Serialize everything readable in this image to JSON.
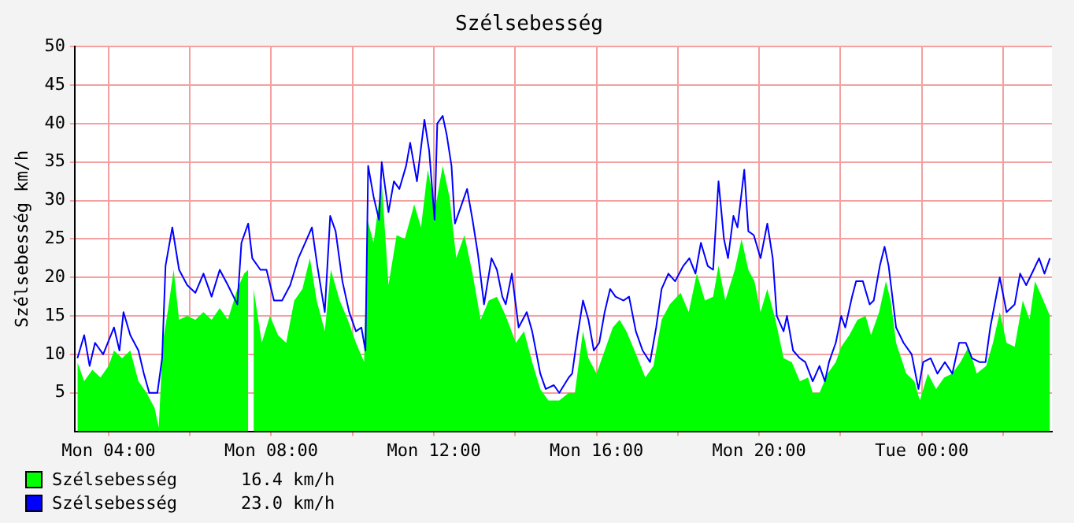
{
  "chart_data": {
    "type": "area",
    "title": "Szélsebesség",
    "ylabel": "Szélsebesség km/h",
    "xlim": [
      "--01-01T03:10",
      "--01-02T03:12"
    ],
    "xticks": [
      {
        "value": "--01-01T04:00",
        "label": "Mon 04:00"
      },
      {
        "value": "--01-01T06:00",
        "label": null
      },
      {
        "value": "--01-01T08:00",
        "label": "Mon 08:00"
      },
      {
        "value": "--01-01T10:00",
        "label": null
      },
      {
        "value": "--01-01T12:00",
        "label": "Mon 12:00"
      },
      {
        "value": "--01-01T14:00",
        "label": null
      },
      {
        "value": "--01-01T16:00",
        "label": "Mon 16:00"
      },
      {
        "value": "--01-01T18:00",
        "label": null
      },
      {
        "value": "--01-01T20:00",
        "label": "Mon 20:00"
      },
      {
        "value": "--01-01T22:00",
        "label": null
      },
      {
        "value": "--01-02T00:00",
        "label": "Tue 00:00"
      },
      {
        "value": "--01-02T02:00",
        "label": null
      }
    ],
    "ylim": [
      0,
      50
    ],
    "yticks": [
      5,
      10,
      15,
      20,
      25,
      30,
      35,
      40,
      45,
      50
    ],
    "grid": true,
    "legend": "bottom left",
    "annotations": [
      "16.4 km/h",
      "23.0 km/h"
    ],
    "series": [
      {
        "name": "Szélsebesség",
        "type": "area",
        "color": "#00ff00",
        "x": [
          "--01-01T03:14",
          "--01-01T03:24",
          "--01-01T03:36",
          "--01-01T03:48",
          "--01-01T04:00",
          "--01-01T04:08",
          "--01-01T04:20",
          "--01-01T04:32",
          "--01-01T04:44",
          "--01-01T04:56",
          "--01-01T05:08",
          "--01-01T05:14",
          "--01-01T05:20",
          "--01-01T05:28",
          "--01-01T05:36",
          "--01-01T05:44",
          "--01-01T05:56",
          "--01-01T06:08",
          "--01-01T06:20",
          "--01-01T06:32",
          "--01-01T06:44",
          "--01-01T06:56",
          "--01-01T07:10",
          "--01-01T07:20",
          "--01-01T07:26",
          "--01-01T07:30",
          "--01-01T07:34",
          "--01-01T07:46",
          "--01-01T07:58",
          "--01-01T08:10",
          "--01-01T08:22",
          "--01-01T08:34",
          "--01-01T08:46",
          "--01-01T08:57",
          "--01-01T09:07",
          "--01-01T09:19",
          "--01-01T09:28",
          "--01-01T09:41",
          "--01-01T09:53",
          "--01-01T10:05",
          "--01-01T10:17",
          "--01-01T10:22",
          "--01-01T10:31",
          "--01-01T10:43",
          "--01-01T10:53",
          "--01-01T11:05",
          "--01-01T11:17",
          "--01-01T11:31",
          "--01-01T11:41",
          "--01-01T11:51",
          "--01-01T12:02",
          "--01-01T12:13",
          "--01-01T12:23",
          "--01-01T12:33",
          "--01-01T12:45",
          "--01-01T12:57",
          "--01-01T13:09",
          "--01-01T13:21",
          "--01-01T13:33",
          "--01-01T13:46",
          "--01-01T14:01",
          "--01-01T14:13",
          "--01-01T14:25",
          "--01-01T14:37",
          "--01-01T14:49",
          "--01-01T15:05",
          "--01-01T15:19",
          "--01-01T15:28",
          "--01-01T15:40",
          "--01-01T15:48",
          "--01-01T16:00",
          "--01-01T16:12",
          "--01-01T16:24",
          "--01-01T16:34",
          "--01-01T16:44",
          "--01-01T16:56",
          "--01-01T17:12",
          "--01-01T17:24",
          "--01-01T17:36",
          "--01-01T17:48",
          "--01-01T18:04",
          "--01-01T18:16",
          "--01-01T18:28",
          "--01-01T18:40",
          "--01-01T18:52",
          "--01-01T19:00",
          "--01-01T19:10",
          "--01-01T19:24",
          "--01-01T19:34",
          "--01-01T19:44",
          "--01-01T19:53",
          "--01-01T20:02",
          "--01-01T20:12",
          "--01-01T20:24",
          "--01-01T20:36",
          "--01-01T20:48",
          "--01-01T21:00",
          "--01-01T21:12",
          "--01-01T21:19",
          "--01-01T21:29",
          "--01-01T21:41",
          "--01-01T21:53",
          "--01-01T22:01",
          "--01-01T22:13",
          "--01-01T22:25",
          "--01-01T22:37",
          "--01-01T22:45",
          "--01-01T22:57",
          "--01-01T23:07",
          "--01-01T23:14",
          "--01-01T23:22",
          "--01-01T23:37",
          "--01-01T23:49",
          "--01-01T23:57",
          "--01-02T00:09",
          "--01-02T00:21",
          "--01-02T00:33",
          "--01-02T00:45",
          "--01-02T00:57",
          "--01-02T01:09",
          "--01-02T01:21",
          "--01-02T01:35",
          "--01-02T01:45",
          "--01-02T01:55",
          "--01-02T02:05",
          "--01-02T02:17",
          "--01-02T02:29",
          "--01-02T02:39",
          "--01-02T02:47",
          "--01-02T02:57",
          "--01-02T03:09"
        ],
        "values": [
          9,
          6.5,
          8,
          7,
          8.5,
          10.5,
          9.5,
          10.5,
          6.5,
          5,
          3,
          0.5,
          11.5,
          16,
          21,
          14.5,
          15,
          14.5,
          15.5,
          14.5,
          16,
          14.5,
          18.5,
          20.5,
          21,
          null,
          18.5,
          11.5,
          15,
          12.5,
          11.5,
          17,
          18.5,
          22.5,
          17,
          13,
          21,
          17,
          14.5,
          11.5,
          9,
          27.5,
          24.5,
          32.5,
          19,
          25.5,
          25,
          29.5,
          26.5,
          34,
          29,
          34.5,
          30.5,
          22.5,
          25.5,
          20.5,
          14.5,
          17,
          17.5,
          15,
          11.5,
          13,
          9,
          5.5,
          4,
          4,
          5,
          5,
          13,
          9.5,
          7.5,
          10.5,
          13.5,
          14.5,
          13,
          10.5,
          7,
          8.5,
          14.5,
          16.5,
          18,
          15.5,
          20.5,
          17,
          17.5,
          21.5,
          17,
          21,
          25,
          21,
          19.5,
          15.5,
          18.5,
          14.5,
          9.5,
          9,
          6.5,
          7,
          5,
          5,
          7.5,
          9,
          11,
          12.5,
          14.5,
          15,
          12.5,
          15.5,
          19.5,
          17,
          11.5,
          7.5,
          6.5,
          4,
          7.5,
          5.5,
          7,
          7.5,
          9,
          11,
          7.5,
          8.5,
          11.5,
          15.5,
          11.5,
          11,
          17,
          14.5,
          19.5,
          17.5,
          15
        ]
      },
      {
        "name": "Szélsebesség",
        "type": "line",
        "color": "#0000ff",
        "x": [
          "--01-01T03:14",
          "--01-01T03:24",
          "--01-01T03:32",
          "--01-01T03:40",
          "--01-01T03:52",
          "--01-01T04:08",
          "--01-01T04:16",
          "--01-01T04:22",
          "--01-01T04:32",
          "--01-01T04:44",
          "--01-01T04:52",
          "--01-01T05:00",
          "--01-01T05:12",
          "--01-01T05:19",
          "--01-01T05:24",
          "--01-01T05:34",
          "--01-01T05:44",
          "--01-01T05:56",
          "--01-01T06:08",
          "--01-01T06:20",
          "--01-01T06:32",
          "--01-01T06:44",
          "--01-01T06:56",
          "--01-01T07:10",
          "--01-01T07:16",
          "--01-01T07:26",
          "--01-01T07:32",
          "--01-01T07:44",
          "--01-01T07:53",
          "--01-01T08:04",
          "--01-01T08:16",
          "--01-01T08:28",
          "--01-01T08:40",
          "--01-01T08:50",
          "--01-01T09:00",
          "--01-01T09:08",
          "--01-01T09:19",
          "--01-01T09:27",
          "--01-01T09:35",
          "--01-01T09:45",
          "--01-01T09:55",
          "--01-01T10:05",
          "--01-01T10:13",
          "--01-01T10:19",
          "--01-01T10:23",
          "--01-01T10:31",
          "--01-01T10:39",
          "--01-01T10:43",
          "--01-01T10:53",
          "--01-01T11:01",
          "--01-01T11:09",
          "--01-01T11:19",
          "--01-01T11:25",
          "--01-01T11:35",
          "--01-01T11:46",
          "--01-01T11:53",
          "--01-01T12:01",
          "--01-01T12:05",
          "--01-01T12:13",
          "--01-01T12:19",
          "--01-01T12:26",
          "--01-01T12:31",
          "--01-01T12:39",
          "--01-01T12:49",
          "--01-01T12:57",
          "--01-01T13:05",
          "--01-01T13:14",
          "--01-01T13:25",
          "--01-01T13:33",
          "--01-01T13:41",
          "--01-01T13:46",
          "--01-01T13:55",
          "--01-01T14:05",
          "--01-01T14:17",
          "--01-01T14:25",
          "--01-01T14:37",
          "--01-01T14:45",
          "--01-01T14:57",
          "--01-01T15:05",
          "--01-01T15:19",
          "--01-01T15:24",
          "--01-01T15:32",
          "--01-01T15:40",
          "--01-01T15:48",
          "--01-01T15:56",
          "--01-01T16:04",
          "--01-01T16:12",
          "--01-01T16:20",
          "--01-01T16:28",
          "--01-01T16:40",
          "--01-01T16:48",
          "--01-01T16:58",
          "--01-01T17:08",
          "--01-01T17:19",
          "--01-01T17:28",
          "--01-01T17:36",
          "--01-01T17:46",
          "--01-01T17:56",
          "--01-01T18:08",
          "--01-01T18:17",
          "--01-01T18:26",
          "--01-01T18:34",
          "--01-01T18:44",
          "--01-01T18:52",
          "--01-01T19:00",
          "--01-01T19:08",
          "--01-01T19:14",
          "--01-01T19:22",
          "--01-01T19:28",
          "--01-01T19:38",
          "--01-01T19:44",
          "--01-01T19:52",
          "--01-01T20:02",
          "--01-01T20:12",
          "--01-01T20:20",
          "--01-01T20:26",
          "--01-01T20:36",
          "--01-01T20:41",
          "--01-01T20:50",
          "--01-01T21:00",
          "--01-01T21:08",
          "--01-01T21:19",
          "--01-01T21:29",
          "--01-01T21:37",
          "--01-01T21:43",
          "--01-01T21:53",
          "--01-01T22:01",
          "--01-01T22:07",
          "--01-01T22:17",
          "--01-01T22:23",
          "--01-01T22:33",
          "--01-01T22:43",
          "--01-01T22:49",
          "--01-01T22:58",
          "--01-01T23:05",
          "--01-01T23:11",
          "--01-01T23:22",
          "--01-01T23:33",
          "--01-01T23:45",
          "--01-01T23:55",
          "--01-02T00:02",
          "--01-02T00:13",
          "--01-02T00:23",
          "--01-02T00:34",
          "--01-02T00:45",
          "--01-02T00:55",
          "--01-02T01:05",
          "--01-02T01:14",
          "--01-02T01:25",
          "--01-02T01:34",
          "--01-02T01:41",
          "--01-02T01:55",
          "--01-02T02:05",
          "--01-02T02:17",
          "--01-02T02:25",
          "--01-02T02:34",
          "--01-02T02:45",
          "--01-02T02:53",
          "--01-02T03:01",
          "--01-02T03:09"
        ],
        "values": [
          9.5,
          12.5,
          8.5,
          11.5,
          10,
          13.5,
          10.5,
          15.5,
          12.5,
          10.5,
          7.5,
          5,
          5,
          9.5,
          21.5,
          26.5,
          21,
          19,
          18,
          20.5,
          17.5,
          21,
          19,
          16.5,
          24.5,
          27,
          22.5,
          21,
          21,
          17,
          17,
          19,
          22.5,
          24.5,
          26.5,
          21.5,
          15.5,
          28,
          26,
          19.5,
          15.5,
          13,
          13.5,
          10.5,
          34.5,
          30.5,
          27.5,
          35,
          28.5,
          32.5,
          31.5,
          34.5,
          37.5,
          32.5,
          40.5,
          36.5,
          27.5,
          40,
          41,
          38.5,
          34.5,
          27,
          29,
          31.5,
          27.5,
          23,
          16.5,
          22.5,
          21,
          17.5,
          16.5,
          20.5,
          13.5,
          15.5,
          13,
          7.5,
          5.5,
          6,
          5,
          7,
          7.5,
          12.5,
          17,
          14.5,
          10.5,
          11.5,
          15.5,
          18.5,
          17.5,
          17,
          17.5,
          13,
          10.5,
          9,
          13.5,
          18.5,
          20.5,
          19.5,
          21.5,
          22.5,
          20.5,
          24.5,
          21.5,
          21,
          32.5,
          25,
          22.5,
          28,
          26.5,
          34,
          26,
          25.5,
          22.5,
          27,
          22.5,
          15,
          13,
          15,
          10.5,
          9.5,
          9,
          6.5,
          8.5,
          6.5,
          9,
          11.5,
          15,
          13.5,
          17.5,
          19.5,
          19.5,
          16.5,
          17,
          21.5,
          24,
          21.5,
          13.5,
          11.5,
          10,
          5.5,
          9,
          9.5,
          7.5,
          9,
          7.5,
          11.5,
          11.5,
          9.5,
          9,
          9,
          13.5,
          20,
          15.5,
          16.5,
          20.5,
          19,
          21,
          22.5,
          20.5,
          22.5
        ]
      }
    ]
  }
}
